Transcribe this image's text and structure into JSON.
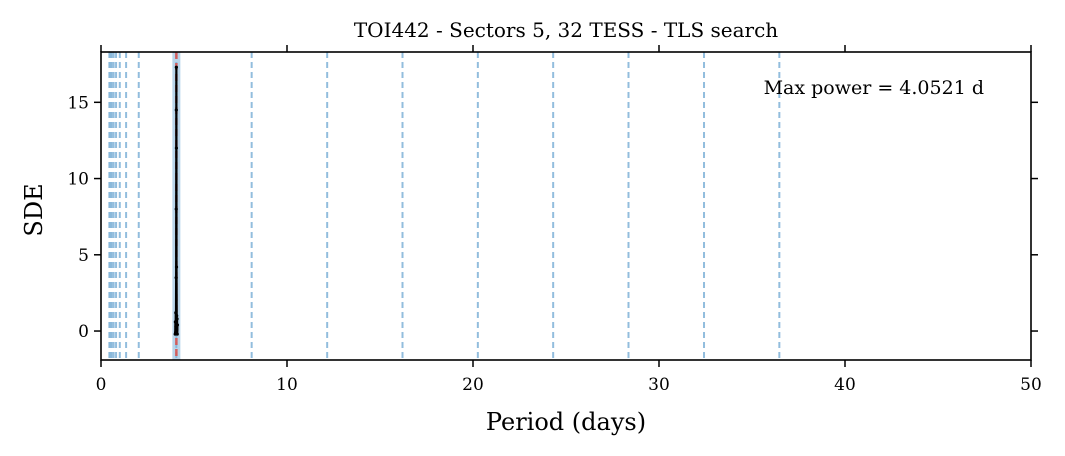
{
  "chart_data": {
    "type": "line",
    "title": "TOI442 - Sectors 5, 32 TESS - TLS search",
    "xlabel": "Period (days)",
    "ylabel": "SDE",
    "xlim": [
      0,
      50
    ],
    "ylim": [
      -1.9,
      18.3
    ],
    "xticks": [
      0,
      10,
      20,
      30,
      40,
      50
    ],
    "yticks": [
      0,
      5,
      10,
      15
    ],
    "annotation": "Max power = 4.0521 d",
    "annotation_placement": "top-right",
    "best_period": 4.0521,
    "best_period_color": "#d9534f",
    "harmonic_color": "#7fb2d8",
    "line_color": "#000000",
    "harmonic_periods": [
      0.45,
      0.51,
      0.58,
      0.68,
      0.81,
      1.01,
      1.35,
      2.03,
      4.05,
      8.1,
      12.16,
      16.21,
      20.26,
      24.31,
      28.36,
      32.42,
      36.47
    ],
    "series": [
      {
        "x": [
          3.99,
          4.0,
          4.01,
          4.02,
          4.03,
          4.04,
          4.045,
          4.05,
          4.052,
          4.055,
          4.06,
          4.07,
          4.08,
          4.09,
          4.1,
          4.11
        ],
        "y": [
          -0.2,
          0.6,
          -0.1,
          1.2,
          0.3,
          3.5,
          8.0,
          14.5,
          17.3,
          12.0,
          4.2,
          1.0,
          0.1,
          0.8,
          -0.2,
          0.4
        ]
      }
    ]
  }
}
